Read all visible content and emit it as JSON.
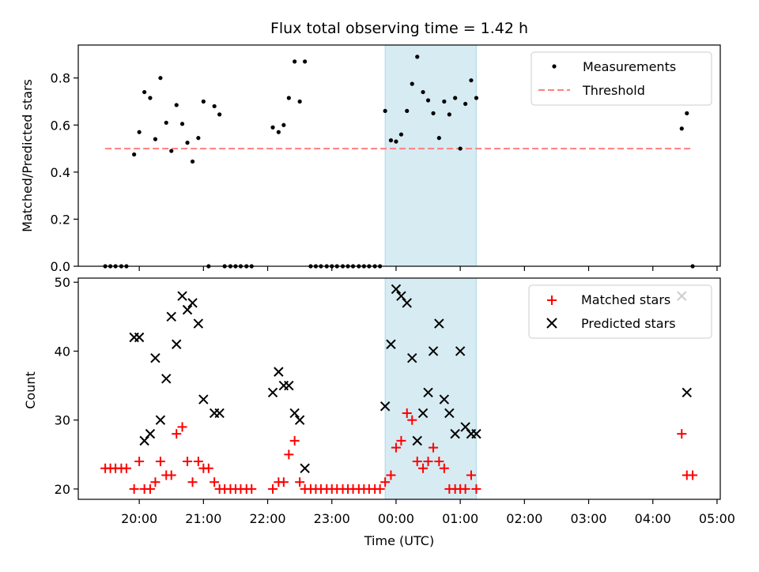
{
  "title": "Flux total observing time = 1.42 h",
  "colors": {
    "measurement": "#000000",
    "threshold": "#ff7f7f",
    "matched": "#ff0000",
    "predicted": "#000000",
    "span_fill": "#add8e6"
  },
  "chart_data": [
    {
      "type": "scatter",
      "panel": "top",
      "title": "Flux total observing time = 1.42 h",
      "xlabel": "",
      "ylabel": "Matched/Predicted stars",
      "xlim": [
        19.05,
        29.05
      ],
      "ylim": [
        0,
        0.94
      ],
      "x_unit": "hours UTC since 00:00 of first night",
      "yticks": [
        0.0,
        0.2,
        0.4,
        0.6,
        0.8
      ],
      "ytick_labels": [
        "0.0",
        "0.2",
        "0.4",
        "0.6",
        "0.8"
      ],
      "shaded_span": [
        23.83,
        25.25
      ],
      "legend": {
        "placement": "top-right",
        "entries": [
          "Measurements",
          "Threshold"
        ]
      },
      "threshold": {
        "name": "Threshold",
        "y": 0.5,
        "x_range": [
          19.47,
          28.62
        ],
        "style": "dashed"
      },
      "series": [
        {
          "name": "Measurements",
          "marker": "dot",
          "points": [
            [
              19.47,
              0
            ],
            [
              19.55,
              0
            ],
            [
              19.63,
              0
            ],
            [
              19.72,
              0
            ],
            [
              19.8,
              0
            ],
            [
              19.92,
              0.475
            ],
            [
              20.0,
              0.57
            ],
            [
              20.08,
              0.74
            ],
            [
              20.17,
              0.715
            ],
            [
              20.25,
              0.54
            ],
            [
              20.33,
              0.8
            ],
            [
              20.42,
              0.61
            ],
            [
              20.5,
              0.49
            ],
            [
              20.58,
              0.685
            ],
            [
              20.67,
              0.605
            ],
            [
              20.75,
              0.525
            ],
            [
              20.83,
              0.445
            ],
            [
              20.92,
              0.545
            ],
            [
              21.0,
              0.7
            ],
            [
              21.08,
              0
            ],
            [
              21.17,
              0.68
            ],
            [
              21.25,
              0.645
            ],
            [
              21.33,
              0
            ],
            [
              21.42,
              0
            ],
            [
              21.5,
              0
            ],
            [
              21.58,
              0
            ],
            [
              21.67,
              0
            ],
            [
              21.75,
              0
            ],
            [
              22.08,
              0.59
            ],
            [
              22.17,
              0.57
            ],
            [
              22.25,
              0.6
            ],
            [
              22.33,
              0.715
            ],
            [
              22.42,
              0.87
            ],
            [
              22.5,
              0.7
            ],
            [
              22.58,
              0.87
            ],
            [
              22.67,
              0
            ],
            [
              22.75,
              0
            ],
            [
              22.83,
              0
            ],
            [
              22.92,
              0
            ],
            [
              23.0,
              0
            ],
            [
              23.08,
              0
            ],
            [
              23.17,
              0
            ],
            [
              23.25,
              0
            ],
            [
              23.33,
              0
            ],
            [
              23.42,
              0
            ],
            [
              23.5,
              0
            ],
            [
              23.58,
              0
            ],
            [
              23.67,
              0
            ],
            [
              23.75,
              0
            ],
            [
              23.83,
              0.66
            ],
            [
              23.92,
              0.535
            ],
            [
              24.0,
              0.53
            ],
            [
              24.08,
              0.56
            ],
            [
              24.17,
              0.66
            ],
            [
              24.25,
              0.775
            ],
            [
              24.33,
              0.89
            ],
            [
              24.42,
              0.74
            ],
            [
              24.5,
              0.705
            ],
            [
              24.58,
              0.65
            ],
            [
              24.67,
              0.545
            ],
            [
              24.75,
              0.7
            ],
            [
              24.83,
              0.645
            ],
            [
              24.92,
              0.715
            ],
            [
              25.0,
              0.5
            ],
            [
              25.08,
              0.69
            ],
            [
              25.17,
              0.79
            ],
            [
              25.25,
              0.715
            ],
            [
              28.45,
              0.585
            ],
            [
              28.53,
              0.65
            ],
            [
              28.62,
              0
            ]
          ]
        }
      ]
    },
    {
      "type": "scatter",
      "panel": "bottom",
      "xlabel": "Time (UTC)",
      "ylabel": "Count",
      "xlim": [
        19.05,
        29.05
      ],
      "ylim": [
        18.5,
        50.6
      ],
      "x_unit": "hours UTC since 00:00 of first night",
      "xticks": [
        20,
        21,
        22,
        23,
        24,
        25,
        26,
        27,
        28,
        29
      ],
      "xtick_labels": [
        "20:00",
        "21:00",
        "22:00",
        "23:00",
        "00:00",
        "01:00",
        "02:00",
        "03:00",
        "04:00",
        "05:00"
      ],
      "yticks": [
        20,
        30,
        40,
        50
      ],
      "ytick_labels": [
        "20",
        "30",
        "40",
        "50"
      ],
      "shaded_span": [
        23.83,
        25.25
      ],
      "legend": {
        "placement": "top-right",
        "entries": [
          "Matched stars",
          "Predicted stars"
        ]
      },
      "series": [
        {
          "name": "Matched stars",
          "marker": "plus",
          "points": [
            [
              19.47,
              23
            ],
            [
              19.55,
              23
            ],
            [
              19.63,
              23
            ],
            [
              19.72,
              23
            ],
            [
              19.8,
              23
            ],
            [
              19.92,
              20
            ],
            [
              20.0,
              24
            ],
            [
              20.08,
              20
            ],
            [
              20.17,
              20
            ],
            [
              20.25,
              21
            ],
            [
              20.33,
              24
            ],
            [
              20.42,
              22
            ],
            [
              20.5,
              22
            ],
            [
              20.58,
              28
            ],
            [
              20.67,
              29
            ],
            [
              20.75,
              24
            ],
            [
              20.83,
              21
            ],
            [
              20.92,
              24
            ],
            [
              21.0,
              23
            ],
            [
              21.08,
              23
            ],
            [
              21.17,
              21
            ],
            [
              21.25,
              20
            ],
            [
              21.33,
              20
            ],
            [
              21.42,
              20
            ],
            [
              21.5,
              20
            ],
            [
              21.58,
              20
            ],
            [
              21.67,
              20
            ],
            [
              21.75,
              20
            ],
            [
              22.08,
              20
            ],
            [
              22.17,
              21
            ],
            [
              22.25,
              21
            ],
            [
              22.33,
              25
            ],
            [
              22.42,
              27
            ],
            [
              22.5,
              21
            ],
            [
              22.58,
              20
            ],
            [
              22.67,
              20
            ],
            [
              22.75,
              20
            ],
            [
              22.83,
              20
            ],
            [
              22.92,
              20
            ],
            [
              23.0,
              20
            ],
            [
              23.08,
              20
            ],
            [
              23.17,
              20
            ],
            [
              23.25,
              20
            ],
            [
              23.33,
              20
            ],
            [
              23.42,
              20
            ],
            [
              23.5,
              20
            ],
            [
              23.58,
              20
            ],
            [
              23.67,
              20
            ],
            [
              23.75,
              20
            ],
            [
              23.83,
              21
            ],
            [
              23.92,
              22
            ],
            [
              24.0,
              26
            ],
            [
              24.08,
              27
            ],
            [
              24.17,
              31
            ],
            [
              24.25,
              30
            ],
            [
              24.33,
              24
            ],
            [
              24.42,
              23
            ],
            [
              24.5,
              24
            ],
            [
              24.58,
              26
            ],
            [
              24.67,
              24
            ],
            [
              24.75,
              23
            ],
            [
              24.83,
              20
            ],
            [
              24.92,
              20
            ],
            [
              25.0,
              20
            ],
            [
              25.08,
              20
            ],
            [
              25.17,
              22
            ],
            [
              25.25,
              20
            ],
            [
              28.45,
              28
            ],
            [
              28.53,
              22
            ],
            [
              28.62,
              22
            ]
          ]
        },
        {
          "name": "Predicted stars",
          "marker": "x",
          "points": [
            [
              19.92,
              42
            ],
            [
              20.0,
              42
            ],
            [
              20.08,
              27
            ],
            [
              20.17,
              28
            ],
            [
              20.25,
              39
            ],
            [
              20.33,
              30
            ],
            [
              20.42,
              36
            ],
            [
              20.5,
              45
            ],
            [
              20.58,
              41
            ],
            [
              20.67,
              48
            ],
            [
              20.75,
              46
            ],
            [
              20.83,
              47
            ],
            [
              20.92,
              44
            ],
            [
              21.0,
              33
            ],
            [
              21.17,
              31
            ],
            [
              21.25,
              31
            ],
            [
              22.08,
              34
            ],
            [
              22.17,
              37
            ],
            [
              22.25,
              35
            ],
            [
              22.33,
              35
            ],
            [
              22.42,
              31
            ],
            [
              22.5,
              30
            ],
            [
              22.58,
              23
            ],
            [
              23.83,
              32
            ],
            [
              23.92,
              41
            ],
            [
              24.0,
              49
            ],
            [
              24.08,
              48
            ],
            [
              24.17,
              47
            ],
            [
              24.25,
              39
            ],
            [
              24.33,
              27
            ],
            [
              24.42,
              31
            ],
            [
              24.5,
              34
            ],
            [
              24.58,
              40
            ],
            [
              24.67,
              44
            ],
            [
              24.75,
              33
            ],
            [
              24.83,
              31
            ],
            [
              24.92,
              28
            ],
            [
              25.0,
              40
            ],
            [
              25.08,
              29
            ],
            [
              25.17,
              28
            ],
            [
              25.25,
              28
            ],
            [
              28.45,
              48
            ],
            [
              28.53,
              34
            ]
          ]
        }
      ]
    }
  ]
}
